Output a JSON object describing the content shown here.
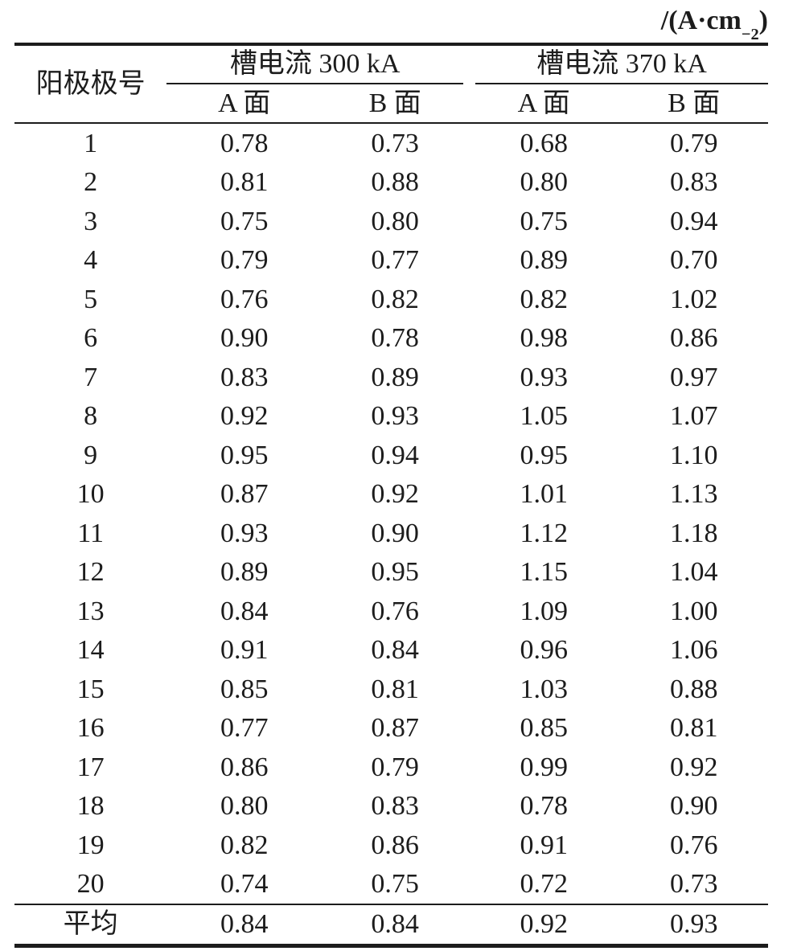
{
  "unit": {
    "prefix": "/(A·cm",
    "superscript": "−2",
    "suffix": ")"
  },
  "table": {
    "row_header_label": "阳极极号",
    "groups": [
      {
        "label": "槽电流 300 kA",
        "subcolumns": [
          "A 面",
          "B 面"
        ]
      },
      {
        "label": "槽电流 370 kA",
        "subcolumns": [
          "A 面",
          "B 面"
        ]
      }
    ],
    "rows": [
      {
        "label": "1",
        "values": [
          "0.78",
          "0.73",
          "0.68",
          "0.79"
        ]
      },
      {
        "label": "2",
        "values": [
          "0.81",
          "0.88",
          "0.80",
          "0.83"
        ]
      },
      {
        "label": "3",
        "values": [
          "0.75",
          "0.80",
          "0.75",
          "0.94"
        ]
      },
      {
        "label": "4",
        "values": [
          "0.79",
          "0.77",
          "0.89",
          "0.70"
        ]
      },
      {
        "label": "5",
        "values": [
          "0.76",
          "0.82",
          "0.82",
          "1.02"
        ]
      },
      {
        "label": "6",
        "values": [
          "0.90",
          "0.78",
          "0.98",
          "0.86"
        ]
      },
      {
        "label": "7",
        "values": [
          "0.83",
          "0.89",
          "0.93",
          "0.97"
        ]
      },
      {
        "label": "8",
        "values": [
          "0.92",
          "0.93",
          "1.05",
          "1.07"
        ]
      },
      {
        "label": "9",
        "values": [
          "0.95",
          "0.94",
          "0.95",
          "1.10"
        ]
      },
      {
        "label": "10",
        "values": [
          "0.87",
          "0.92",
          "1.01",
          "1.13"
        ]
      },
      {
        "label": "11",
        "values": [
          "0.93",
          "0.90",
          "1.12",
          "1.18"
        ]
      },
      {
        "label": "12",
        "values": [
          "0.89",
          "0.95",
          "1.15",
          "1.04"
        ]
      },
      {
        "label": "13",
        "values": [
          "0.84",
          "0.76",
          "1.09",
          "1.00"
        ]
      },
      {
        "label": "14",
        "values": [
          "0.91",
          "0.84",
          "0.96",
          "1.06"
        ]
      },
      {
        "label": "15",
        "values": [
          "0.85",
          "0.81",
          "1.03",
          "0.88"
        ]
      },
      {
        "label": "16",
        "values": [
          "0.77",
          "0.87",
          "0.85",
          "0.81"
        ]
      },
      {
        "label": "17",
        "values": [
          "0.86",
          "0.79",
          "0.99",
          "0.92"
        ]
      },
      {
        "label": "18",
        "values": [
          "0.80",
          "0.83",
          "0.78",
          "0.90"
        ]
      },
      {
        "label": "19",
        "values": [
          "0.82",
          "0.86",
          "0.91",
          "0.76"
        ]
      },
      {
        "label": "20",
        "values": [
          "0.74",
          "0.75",
          "0.72",
          "0.73"
        ]
      }
    ],
    "average": {
      "label": "平均",
      "values": [
        "0.84",
        "0.84",
        "0.92",
        "0.93"
      ]
    }
  },
  "colors": {
    "text": "#1c1c1c",
    "rule": "#1c1c1c",
    "background": "#ffffff"
  }
}
